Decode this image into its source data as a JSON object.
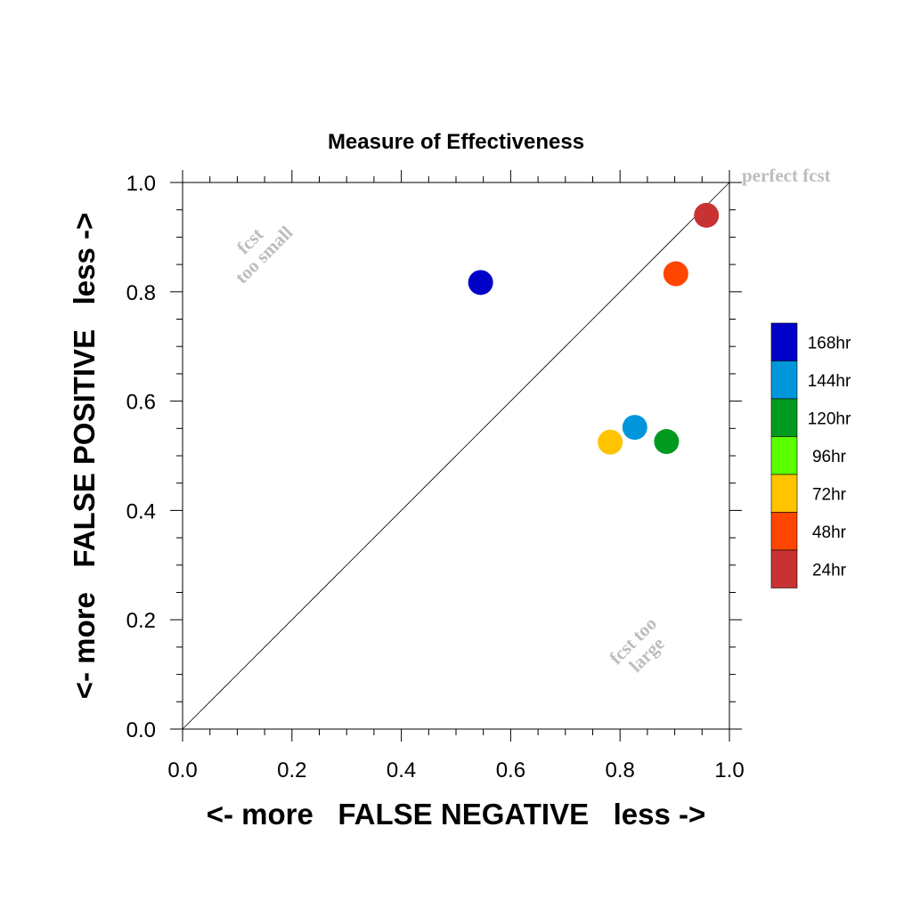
{
  "chart_data": {
    "type": "scatter",
    "title": "Measure of Effectiveness",
    "xlabel": "<- more   FALSE NEGATIVE   less ->",
    "ylabel": "<- more   FALSE POSITIVE   less ->",
    "xlim": [
      0.0,
      1.0
    ],
    "ylim": [
      0.0,
      1.0
    ],
    "x_ticks": [
      "0.0",
      "0.2",
      "0.4",
      "0.6",
      "0.8",
      "1.0"
    ],
    "y_ticks": [
      "0.0",
      "0.2",
      "0.4",
      "0.6",
      "0.8",
      "1.0"
    ],
    "grid": false,
    "diagonal_line": true,
    "legend_position": "right",
    "annotations": {
      "perfect": "perfect fcst",
      "small_line1": "fcst",
      "small_line2": "too small",
      "large_line1": "fcst too",
      "large_line2": "large"
    },
    "series": [
      {
        "name": "168hr",
        "color": "#0000c8",
        "x": 0.545,
        "y": 0.817
      },
      {
        "name": "144hr",
        "color": "#0096dc",
        "x": 0.827,
        "y": 0.552
      },
      {
        "name": "120hr",
        "color": "#009b1e",
        "x": 0.885,
        "y": 0.526
      },
      {
        "name": "96hr",
        "color": "#5aff00",
        "x": null,
        "y": null
      },
      {
        "name": "72hr",
        "color": "#ffc300",
        "x": 0.782,
        "y": 0.525
      },
      {
        "name": "48hr",
        "color": "#ff4600",
        "x": 0.902,
        "y": 0.833
      },
      {
        "name": "24hr",
        "color": "#c83232",
        "x": 0.958,
        "y": 0.94
      }
    ]
  }
}
